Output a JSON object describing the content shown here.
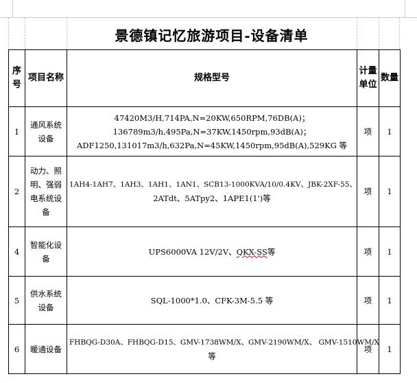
{
  "title": "景德镇记忆旅游项目-设备清单",
  "headers": {
    "seq": "序号",
    "name": "项目名称",
    "spec": "规格型号",
    "unit": "计量单位",
    "qty": "数量"
  },
  "rows": [
    {
      "seq": "1",
      "name": "通风系统设备",
      "spec": [
        "47420M3/H,714PA,N=20KW,650RPM,76DB(A)；",
        "136789m3/h,495Pa,N=37KW,1450rpm,93dB(A)；",
        "ADF1250,131017m3/h,632Pa,N=45KW,1450rpm,95dB(A),529KG 等"
      ],
      "unit": "项",
      "qty": "1"
    },
    {
      "seq": "2",
      "name": "动力、照明、强弱电系统设备",
      "spec": [
        "1AH4-1AH7、1AH3、1AH1、1AN1、SCB13-1000KVA/10/0.4KV、JBK-2XF-55、",
        "2ATdt、5ATpy2、1APE1(1')等"
      ],
      "unit": "项",
      "qty": "1"
    },
    {
      "seq": "4",
      "name": "智能化设备",
      "spec": [
        "UPS6000VA 12V/2V、",
        "QKX-SS",
        "等"
      ],
      "unit": "项",
      "qty": "1"
    },
    {
      "seq": "5",
      "name": "供水系统设备",
      "spec": [
        "SQL-1000*1.0、CFK-3M-5.5 等"
      ],
      "unit": "项",
      "qty": "1"
    },
    {
      "seq": "6",
      "name": "暖通设备",
      "spec": [
        "FHBQG-D30A、FHBQG-D15、GMV-1738WM/X、GMV-2190WM/X、 GMV-1510WM/X",
        "等"
      ],
      "unit": "项",
      "qty": "1"
    }
  ]
}
